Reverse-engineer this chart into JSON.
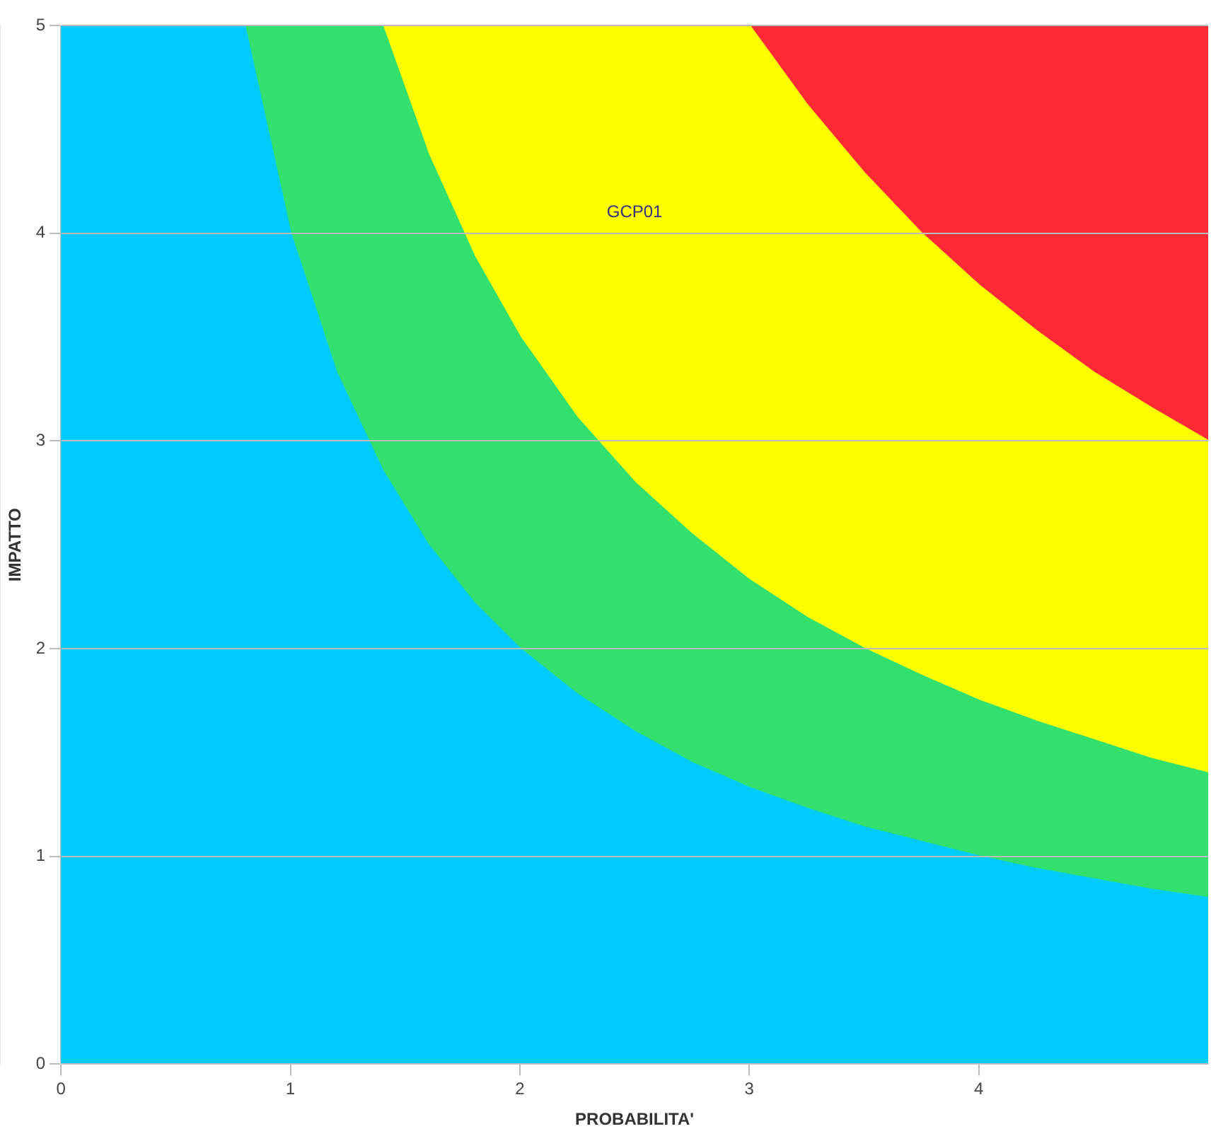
{
  "chart_data": {
    "type": "area",
    "xlabel": "PROBABILITA'",
    "ylabel": "IMPATTO",
    "x": [
      0,
      0.8,
      1,
      1.2,
      1.4,
      1.6,
      1.8,
      2,
      2.25,
      2.5,
      2.75,
      3,
      3.25,
      3.5,
      3.75,
      4,
      4.25,
      4.5,
      4.75,
      5
    ],
    "series": [
      {
        "color": "#00ccff",
        "values": [
          5,
          5,
          4,
          3.33,
          2.86,
          2.5,
          2.22,
          2,
          1.78,
          1.6,
          1.45,
          1.33,
          1.23,
          1.14,
          1.07,
          1,
          0.94,
          0.89,
          0.84,
          0.8
        ]
      },
      {
        "color": "#33e06d",
        "values": [
          0,
          0,
          1,
          1.67,
          2.14,
          1.88,
          1.67,
          1.5,
          1.33,
          1.2,
          1.1,
          1,
          0.92,
          0.86,
          0.8,
          0.75,
          0.71,
          0.67,
          0.63,
          0.6
        ]
      },
      {
        "color": "#ffff00",
        "values": [
          0,
          0,
          0,
          0,
          0,
          0.62,
          1.11,
          1.5,
          1.89,
          2.2,
          2.45,
          2.67,
          2.47,
          2.29,
          2.13,
          2,
          1.88,
          1.77,
          1.69,
          1.6
        ]
      },
      {
        "color": "#ff2a35",
        "values": [
          0,
          0,
          0,
          0,
          0,
          0,
          0,
          0,
          0,
          0,
          0,
          0,
          0.38,
          0.71,
          1,
          1.25,
          1.47,
          1.67,
          1.84,
          2
        ]
      }
    ],
    "stacked": true,
    "xlim": [
      0,
      5
    ],
    "xticks": [
      0,
      1,
      2,
      3,
      4
    ],
    "ylim": [
      0,
      5
    ],
    "yticks": [
      0,
      1,
      2,
      3,
      4,
      5
    ],
    "grid": true,
    "annotations": [
      "GCP01"
    ]
  }
}
